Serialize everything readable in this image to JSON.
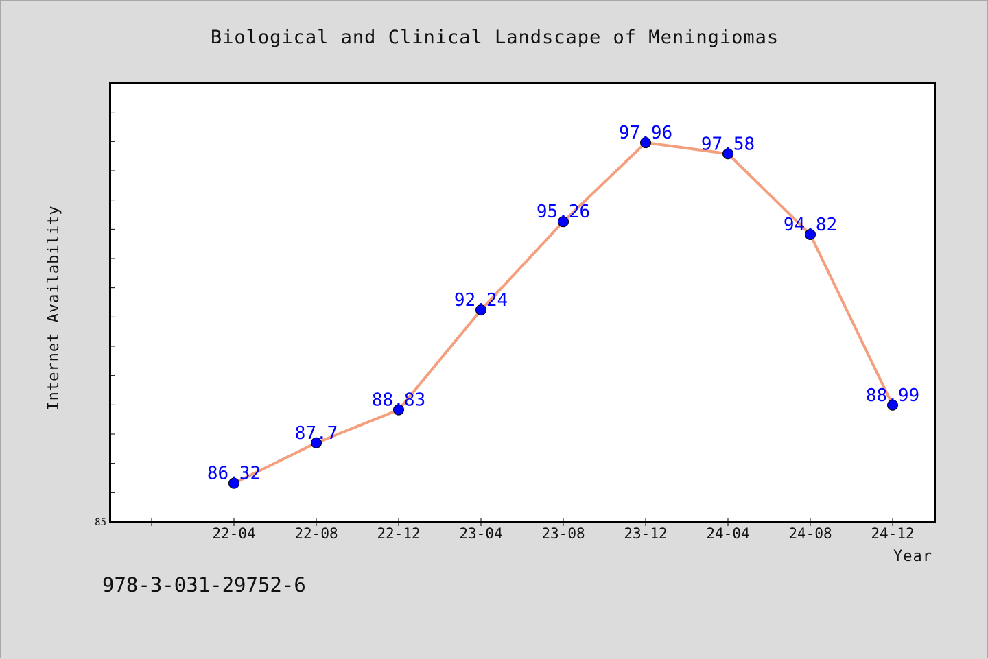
{
  "chart_data": {
    "type": "line",
    "title": "Biological and Clinical Landscape of Meningiomas",
    "xlabel": "Year",
    "ylabel": "Internet Availability",
    "categories": [
      "22-04",
      "22-08",
      "22-12",
      "23-04",
      "23-08",
      "23-12",
      "24-04",
      "24-08",
      "24-12"
    ],
    "series": [
      {
        "values": [
          86.32,
          87.7,
          88.83,
          92.24,
          95.26,
          97.96,
          97.58,
          94.82,
          88.99
        ]
      }
    ],
    "data_labels": [
      "86.32",
      "87.7",
      "88.83",
      "92.24",
      "95.26",
      "97.96",
      "97.58",
      "94.82",
      "88.99"
    ],
    "ylim": [
      85,
      100
    ],
    "ytick_labels": [
      "85"
    ],
    "grid": false,
    "line_color": "#f4a07e",
    "marker_color": "#0000ff",
    "label_color": "#0000ff"
  },
  "footer": {
    "isbn": "978-3-031-29752-6"
  }
}
